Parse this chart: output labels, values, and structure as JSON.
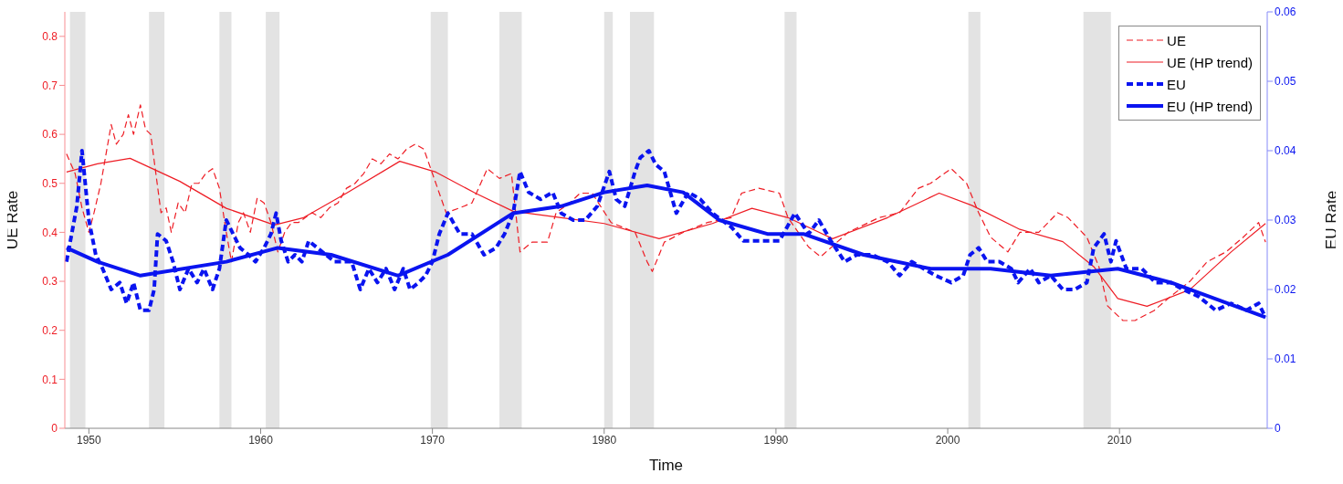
{
  "chart_data": {
    "type": "line",
    "xlabel": "Time",
    "ylabel": "UE Rate",
    "y2label": "EU Rate",
    "xlim": [
      1948.6,
      2018.6
    ],
    "xticks": [
      1950,
      1960,
      1970,
      1980,
      1990,
      2000,
      2010
    ],
    "ylim": [
      0,
      0.85
    ],
    "yticks": [
      0,
      0.1,
      0.2,
      0.3,
      0.4,
      0.5,
      0.6,
      0.7,
      0.8
    ],
    "y2lim": [
      0,
      0.06
    ],
    "y2ticks": [
      0,
      0.01,
      0.02,
      0.03,
      0.04,
      0.05,
      0.06
    ],
    "grid": false,
    "legend": "top right",
    "marker": "none",
    "bands": [
      {
        "axis": "x",
        "from": 1948.9,
        "to": 1949.8,
        "color": "#e3e3e3"
      },
      {
        "axis": "x",
        "from": 1953.5,
        "to": 1954.4,
        "color": "#e3e3e3"
      },
      {
        "axis": "x",
        "from": 1957.6,
        "to": 1958.3,
        "color": "#e3e3e3"
      },
      {
        "axis": "x",
        "from": 1960.3,
        "to": 1961.1,
        "color": "#e3e3e3"
      },
      {
        "axis": "x",
        "from": 1969.9,
        "to": 1970.9,
        "color": "#e3e3e3"
      },
      {
        "axis": "x",
        "from": 1973.9,
        "to": 1975.2,
        "color": "#e3e3e3"
      },
      {
        "axis": "x",
        "from": 1980,
        "to": 1980.5,
        "color": "#e3e3e3"
      },
      {
        "axis": "x",
        "from": 1981.5,
        "to": 1982.9,
        "color": "#e3e3e3"
      },
      {
        "axis": "x",
        "from": 1990.5,
        "to": 1991.2,
        "color": "#e3e3e3"
      },
      {
        "axis": "x",
        "from": 2001.2,
        "to": 2001.9,
        "color": "#e3e3e3"
      },
      {
        "axis": "x",
        "from": 2007.9,
        "to": 2009.5,
        "color": "#e3e3e3"
      }
    ],
    "series": [
      {
        "name": "UE",
        "color": "#ee1c24",
        "line_style": "dashed",
        "axis": "y",
        "x": [
          1948.7,
          1949.2,
          1949.6,
          1950,
          1950.3,
          1950.7,
          1951,
          1951.3,
          1951.6,
          1952,
          1952.3,
          1952.6,
          1953,
          1953.3,
          1953.6,
          1953.9,
          1954.2,
          1954.5,
          1954.8,
          1955.2,
          1955.6,
          1956,
          1956.4,
          1956.8,
          1957.2,
          1957.6,
          1958,
          1958.3,
          1958.7,
          1959,
          1959.4,
          1959.8,
          1960.2,
          1960.6,
          1961,
          1961.4,
          1961.8,
          1962.2,
          1962.6,
          1963,
          1963.5,
          1964,
          1964.5,
          1965,
          1965.5,
          1966,
          1966.5,
          1967,
          1967.5,
          1968,
          1968.5,
          1969,
          1969.5,
          1970,
          1970.4,
          1970.8,
          1971.6,
          1972.3,
          1973.2,
          1973.9,
          1974.6,
          1975.1,
          1975.8,
          1976.7,
          1977.2,
          1978,
          1978.6,
          1979.3,
          1980.4,
          1981.1,
          1981.8,
          1982.5,
          1982.8,
          1983.5,
          1984.6,
          1986,
          1987.4,
          1988,
          1989,
          1990.2,
          1990.7,
          1991.9,
          1992.6,
          1994.2,
          1996,
          1997.2,
          1998.3,
          1999,
          2000.2,
          2001.1,
          2001.8,
          2002.5,
          2003.5,
          2004.2,
          2005.3,
          2006.4,
          2007,
          2008.1,
          2008.8,
          2009.3,
          2010.2,
          2010.9,
          2012,
          2013,
          2014.1,
          2015.1,
          2016.2,
          2017.2,
          2018.1,
          2018.5
        ],
        "values": [
          0.56,
          0.52,
          0.45,
          0.4,
          0.44,
          0.5,
          0.56,
          0.62,
          0.58,
          0.6,
          0.64,
          0.6,
          0.66,
          0.61,
          0.6,
          0.52,
          0.44,
          0.45,
          0.4,
          0.46,
          0.44,
          0.5,
          0.5,
          0.52,
          0.53,
          0.49,
          0.4,
          0.34,
          0.42,
          0.44,
          0.4,
          0.47,
          0.46,
          0.42,
          0.36,
          0.4,
          0.42,
          0.42,
          0.43,
          0.44,
          0.43,
          0.45,
          0.46,
          0.49,
          0.5,
          0.52,
          0.55,
          0.54,
          0.56,
          0.55,
          0.57,
          0.58,
          0.57,
          0.52,
          0.48,
          0.44,
          0.45,
          0.46,
          0.53,
          0.51,
          0.52,
          0.36,
          0.38,
          0.38,
          0.44,
          0.46,
          0.48,
          0.48,
          0.42,
          0.41,
          0.4,
          0.34,
          0.32,
          0.38,
          0.4,
          0.42,
          0.43,
          0.48,
          0.49,
          0.48,
          0.43,
          0.37,
          0.35,
          0.4,
          0.43,
          0.44,
          0.49,
          0.5,
          0.53,
          0.5,
          0.44,
          0.39,
          0.36,
          0.4,
          0.4,
          0.44,
          0.43,
          0.39,
          0.33,
          0.25,
          0.22,
          0.22,
          0.24,
          0.27,
          0.3,
          0.34,
          0.36,
          0.39,
          0.42,
          0.38
        ]
      },
      {
        "name": "UE (HP trend)",
        "color": "#ee1c24",
        "line_style": "solid",
        "axis": "y",
        "x": [
          1948.7,
          1950.5,
          1952.4,
          1955.3,
          1958,
          1960.8,
          1962.5,
          1965,
          1968.1,
          1970.2,
          1972.5,
          1974.7,
          1977.5,
          1980,
          1983.2,
          1986.3,
          1988.6,
          1990.7,
          1993.3,
          1996.5,
          1999.5,
          2001.4,
          2004.2,
          2006.7,
          2008.5,
          2009.9,
          2011.6,
          2014.1,
          2016.5,
          2018.5
        ],
        "values": [
          0.523,
          0.54,
          0.551,
          0.504,
          0.449,
          0.415,
          0.43,
          0.48,
          0.545,
          0.523,
          0.48,
          0.443,
          0.43,
          0.418,
          0.387,
          0.418,
          0.449,
          0.43,
          0.387,
          0.43,
          0.48,
          0.455,
          0.406,
          0.381,
          0.33,
          0.265,
          0.249,
          0.283,
          0.36,
          0.418
        ]
      },
      {
        "name": "EU",
        "color": "#0a14f0",
        "line_style": "dashed",
        "axis": "y2",
        "x": [
          1948.7,
          1949,
          1949.3,
          1949.6,
          1950,
          1950.4,
          1950.8,
          1951.3,
          1951.8,
          1952.2,
          1952.6,
          1953,
          1953.5,
          1953.8,
          1954,
          1954.5,
          1954.9,
          1955.3,
          1955.8,
          1956.3,
          1956.7,
          1957.2,
          1957.6,
          1958,
          1958.4,
          1958.8,
          1959.3,
          1959.7,
          1960.2,
          1960.6,
          1960.9,
          1961.2,
          1961.6,
          1962,
          1962.4,
          1962.8,
          1963.3,
          1963.8,
          1964.3,
          1964.8,
          1965.3,
          1965.8,
          1966.3,
          1966.8,
          1967.3,
          1967.8,
          1968.3,
          1968.7,
          1969.2,
          1969.6,
          1970,
          1970.4,
          1970.9,
          1971.6,
          1972.3,
          1973,
          1973.7,
          1974.2,
          1974.7,
          1975.1,
          1975.6,
          1976.3,
          1977,
          1977.5,
          1978.2,
          1978.9,
          1979.6,
          1980.3,
          1980.7,
          1981.2,
          1981.8,
          1982.1,
          1982.6,
          1983,
          1983.5,
          1984.2,
          1984.9,
          1985.6,
          1986.3,
          1987.4,
          1988.1,
          1988.8,
          1989.5,
          1990.2,
          1991.1,
          1991.9,
          1992.5,
          1993.2,
          1994,
          1994.7,
          1995.6,
          1996.5,
          1997.2,
          1997.9,
          1998.6,
          1999.3,
          2000.2,
          2000.9,
          2001.3,
          2001.8,
          2002.3,
          2003,
          2003.7,
          2004.1,
          2004.8,
          2005.3,
          2006,
          2006.7,
          2007.4,
          2008.1,
          2008.5,
          2009.1,
          2009.5,
          2009.8,
          2010.4,
          2011.3,
          2012.1,
          2013,
          2013.7,
          2014.6,
          2015.6,
          2016.5,
          2017.4,
          2018.1,
          2018.5
        ],
        "values": [
          0.024,
          0.028,
          0.032,
          0.04,
          0.03,
          0.025,
          0.023,
          0.02,
          0.021,
          0.018,
          0.021,
          0.017,
          0.017,
          0.02,
          0.028,
          0.027,
          0.024,
          0.02,
          0.023,
          0.021,
          0.023,
          0.02,
          0.023,
          0.03,
          0.028,
          0.026,
          0.025,
          0.024,
          0.026,
          0.028,
          0.031,
          0.027,
          0.024,
          0.025,
          0.024,
          0.027,
          0.026,
          0.025,
          0.024,
          0.024,
          0.024,
          0.02,
          0.023,
          0.021,
          0.023,
          0.02,
          0.023,
          0.02,
          0.021,
          0.022,
          0.024,
          0.028,
          0.031,
          0.028,
          0.028,
          0.025,
          0.026,
          0.028,
          0.031,
          0.037,
          0.034,
          0.033,
          0.034,
          0.031,
          0.03,
          0.03,
          0.032,
          0.037,
          0.033,
          0.032,
          0.037,
          0.039,
          0.04,
          0.038,
          0.037,
          0.031,
          0.034,
          0.033,
          0.031,
          0.029,
          0.027,
          0.027,
          0.027,
          0.027,
          0.031,
          0.028,
          0.03,
          0.027,
          0.024,
          0.025,
          0.025,
          0.024,
          0.022,
          0.024,
          0.023,
          0.022,
          0.021,
          0.022,
          0.025,
          0.026,
          0.024,
          0.024,
          0.023,
          0.021,
          0.023,
          0.021,
          0.022,
          0.02,
          0.02,
          0.021,
          0.026,
          0.028,
          0.024,
          0.027,
          0.023,
          0.023,
          0.021,
          0.021,
          0.02,
          0.019,
          0.017,
          0.018,
          0.017,
          0.018,
          0.016
        ]
      },
      {
        "name": "EU (HP trend)",
        "color": "#0a14f0",
        "line_style": "solid",
        "axis": "y2",
        "x": [
          1948.7,
          1950.5,
          1953,
          1958,
          1961,
          1964.1,
          1968,
          1970.9,
          1974.7,
          1977.5,
          1980,
          1982.5,
          1984.6,
          1986.7,
          1989.5,
          1991.6,
          1995.1,
          1999,
          2002.5,
          2006,
          2009.9,
          2013,
          2018.5
        ],
        "values": [
          0.026,
          0.024,
          0.022,
          0.024,
          0.026,
          0.025,
          0.022,
          0.025,
          0.031,
          0.032,
          0.034,
          0.035,
          0.034,
          0.03,
          0.028,
          0.028,
          0.025,
          0.023,
          0.023,
          0.022,
          0.023,
          0.021,
          0.016
        ]
      }
    ]
  }
}
